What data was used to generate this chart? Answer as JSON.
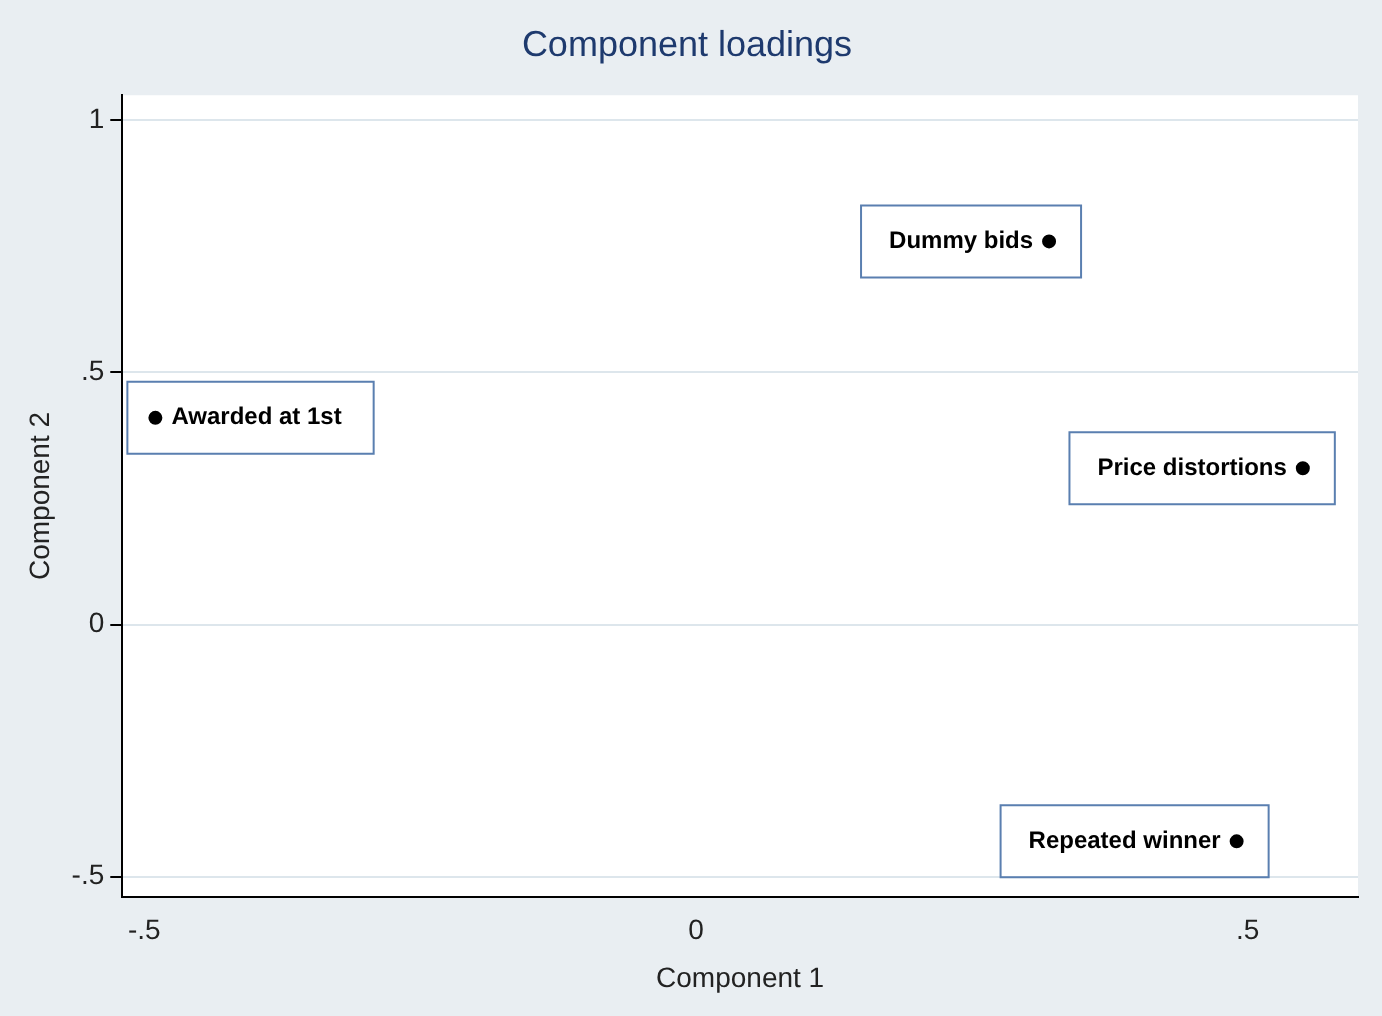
{
  "chart_data": {
    "type": "scatter",
    "title": "Component loadings",
    "xlabel": "Component 1",
    "ylabel": "Component 2",
    "x": [
      0.32,
      -0.49,
      0.55,
      0.49
    ],
    "values": [
      0.76,
      0.41,
      0.31,
      -0.43
    ],
    "color": "#000000",
    "marker": "circle",
    "grid": "y",
    "xlim": [
      -0.52,
      0.6
    ],
    "ylim": [
      -0.54,
      1.05
    ],
    "xticks": [
      {
        "value": -0.5,
        "label": "-.5"
      },
      0,
      {
        "value": 0.5,
        "label": ".5"
      }
    ],
    "yticks": [
      {
        "value": -0.5,
        "label": "-.5"
      },
      0,
      {
        "value": 0.5,
        "label": ".5"
      },
      1
    ],
    "annotations": [
      {
        "text": "Dummy bids",
        "x": 0.32,
        "y": 0.76
      },
      {
        "text": "Awarded at 1st",
        "x": -0.49,
        "y": 0.41
      },
      {
        "text": "Price distortions",
        "x": 0.55,
        "y": 0.31
      },
      {
        "text": "Repeated winner",
        "x": 0.49,
        "y": -0.43
      }
    ]
  }
}
